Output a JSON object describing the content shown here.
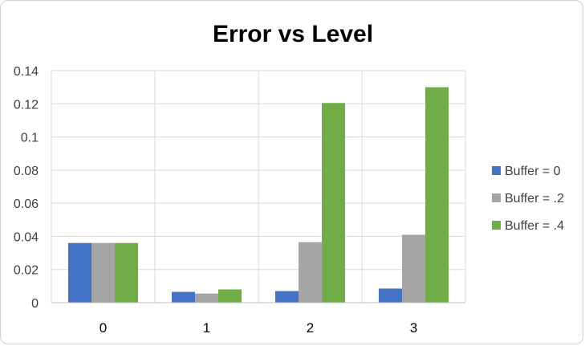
{
  "chart_data": {
    "type": "bar",
    "title": "Error vs Level",
    "categories": [
      "0",
      "1",
      "2",
      "3"
    ],
    "series": [
      {
        "name": "Buffer = 0",
        "color": "#4472C4",
        "values": [
          0.036,
          0.0065,
          0.007,
          0.0085
        ]
      },
      {
        "name": "Buffer = .2",
        "color": "#A5A5A5",
        "values": [
          0.036,
          0.0055,
          0.0365,
          0.041
        ]
      },
      {
        "name": "Buffer = .4",
        "color": "#70AD47",
        "values": [
          0.036,
          0.008,
          0.1205,
          0.13
        ]
      }
    ],
    "ylim": [
      0,
      0.14
    ],
    "yticks": [
      0,
      0.02,
      0.04,
      0.06,
      0.08,
      0.1,
      0.12,
      0.14
    ],
    "ytick_labels": [
      "0",
      "0.02",
      "0.04",
      "0.06",
      "0.08",
      "0.1",
      "0.12",
      "0.14"
    ],
    "grid": true,
    "legend": "right"
  }
}
